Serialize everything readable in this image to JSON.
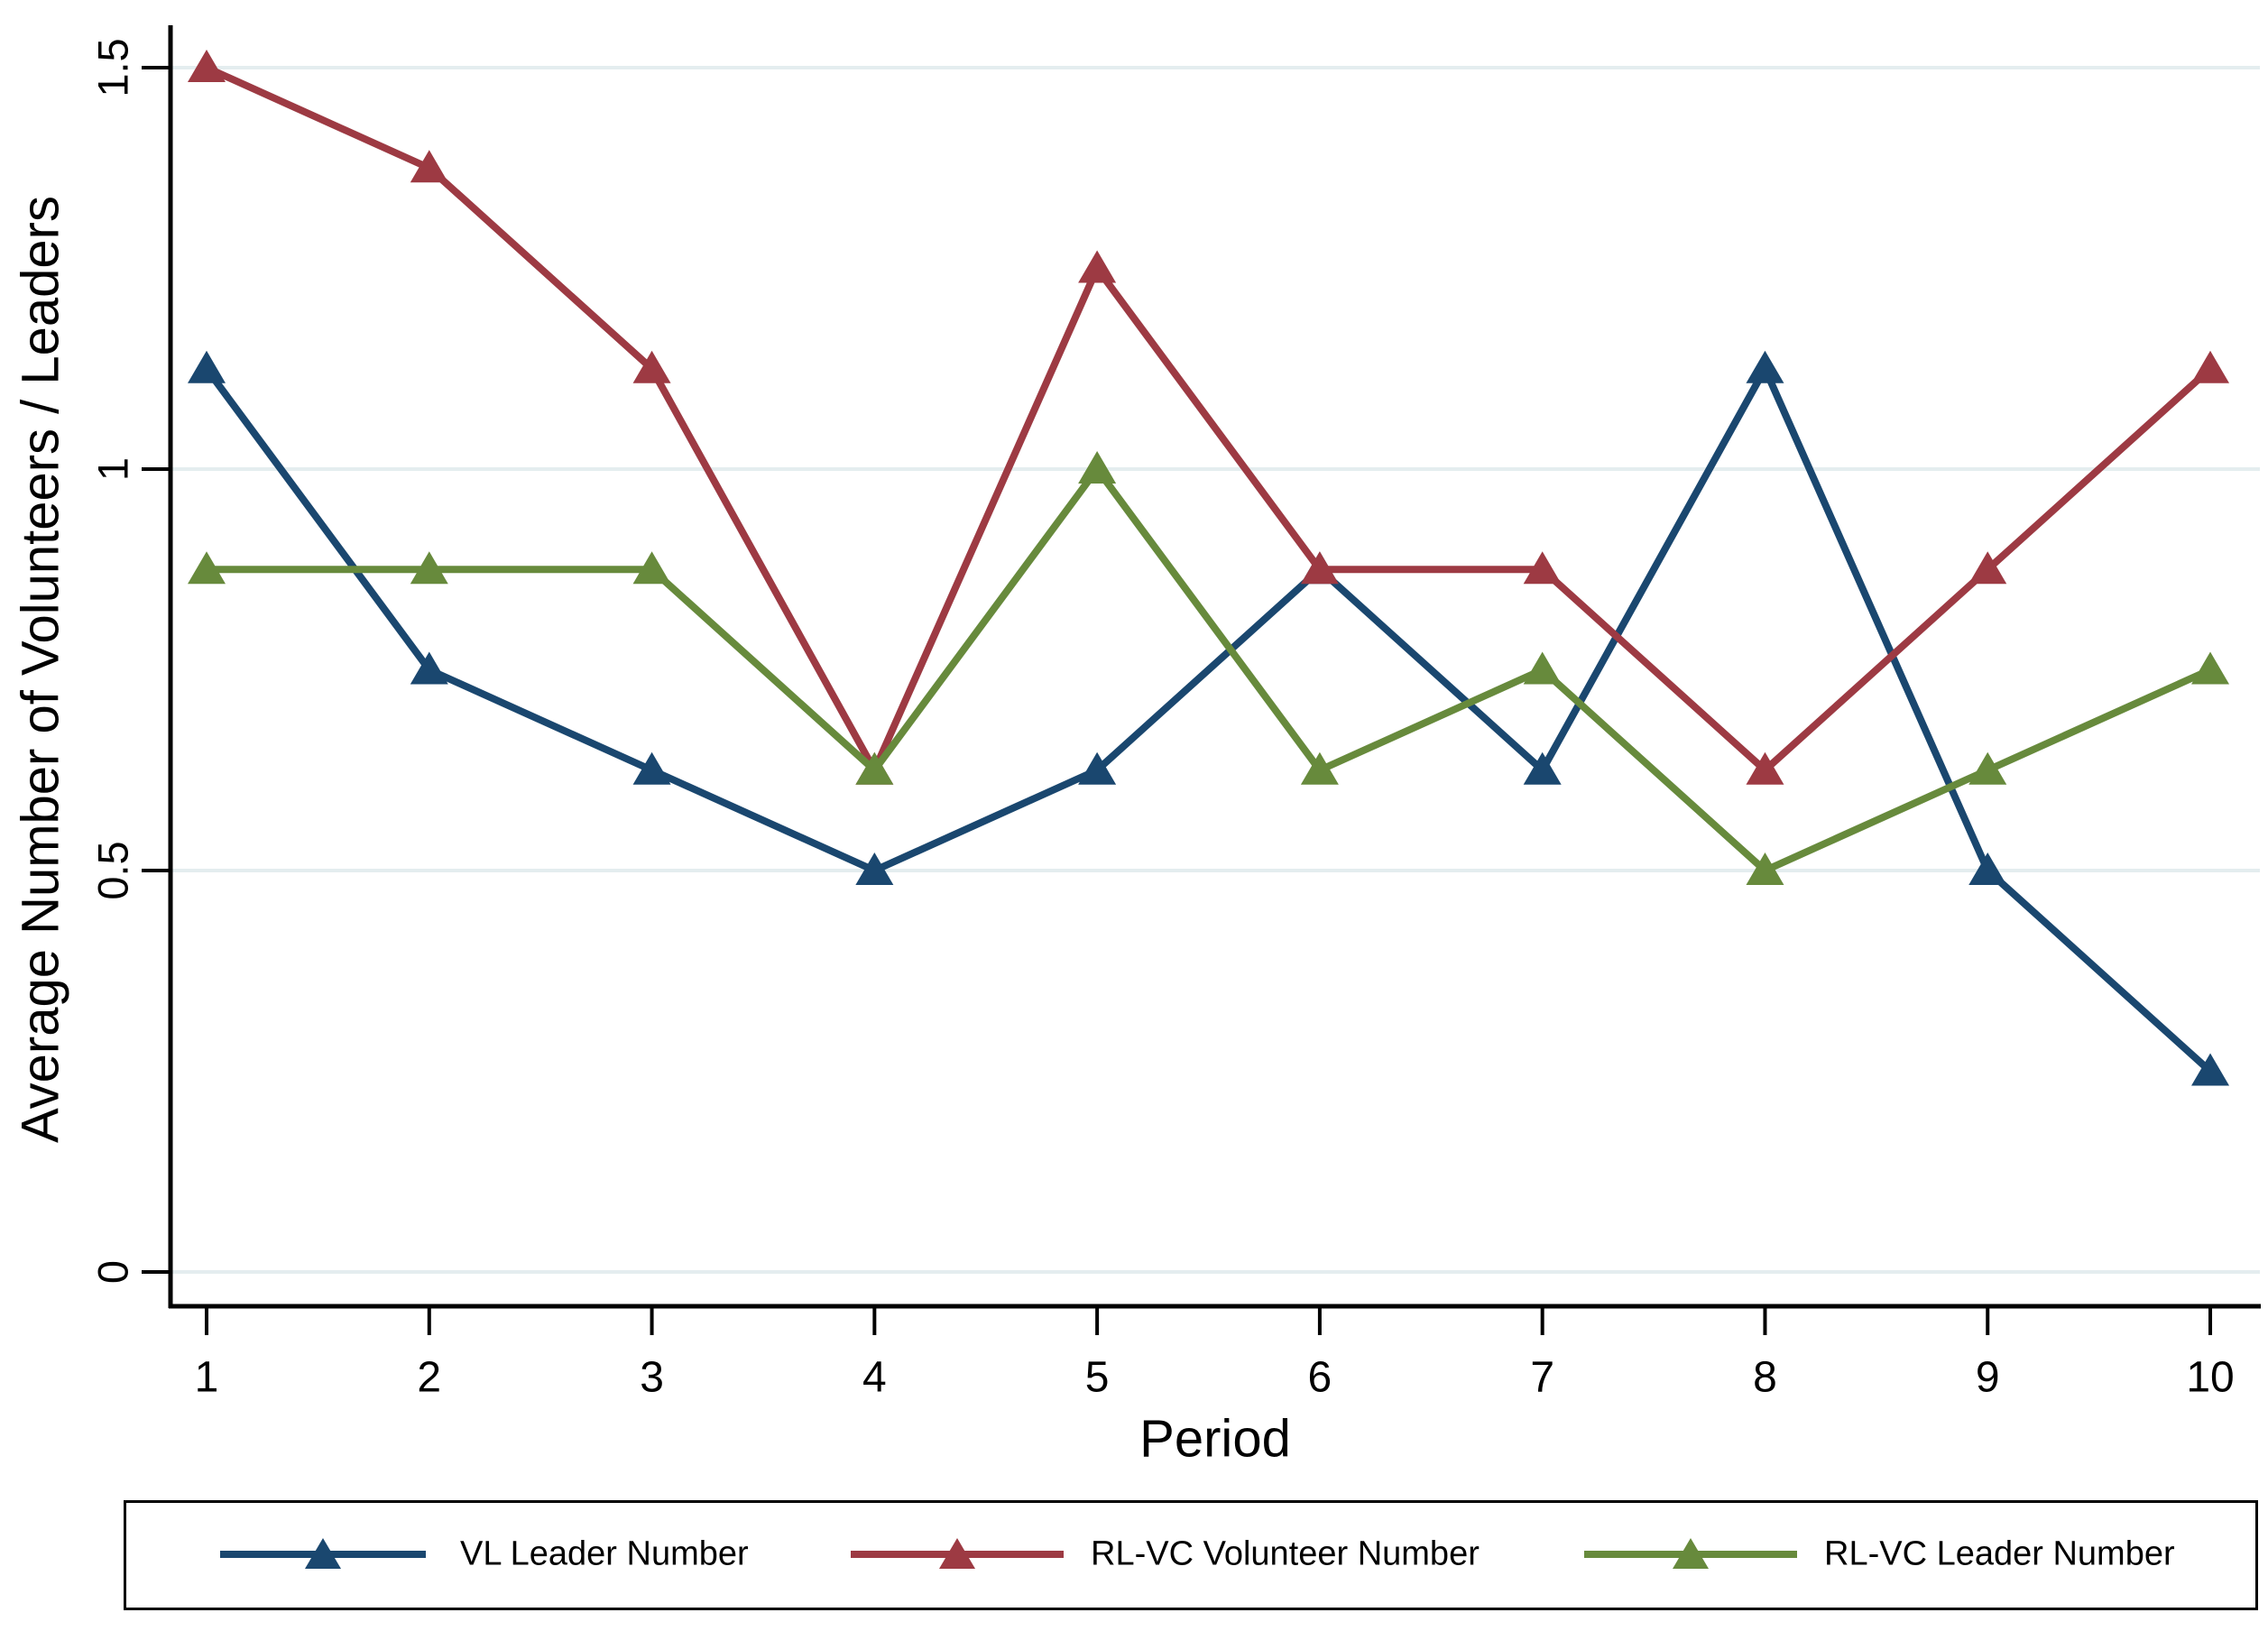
{
  "chart_data": {
    "type": "line",
    "title": "",
    "xlabel": "Period",
    "ylabel": "Average Number of Volunteers / Leaders",
    "x": [
      1,
      2,
      3,
      4,
      5,
      6,
      7,
      8,
      9,
      10
    ],
    "x_tick_labels": [
      "1",
      "2",
      "3",
      "4",
      "5",
      "6",
      "7",
      "8",
      "9",
      "10"
    ],
    "y_ticks": [
      0,
      0.5,
      1,
      1.5
    ],
    "y_tick_labels": [
      "0",
      "0.5",
      "1",
      "1.5"
    ],
    "ylim": [
      0,
      1.58
    ],
    "grid": true,
    "legend_position": "bottom",
    "series": [
      {
        "name": "VL Leader Number",
        "color": "#1a476f",
        "marker": "triangle",
        "values": [
          1.125,
          0.75,
          0.625,
          0.5,
          0.625,
          0.875,
          0.625,
          1.125,
          0.5,
          0.25
        ]
      },
      {
        "name": "RL-VC Volunteer Number",
        "color": "#9d3a43",
        "marker": "triangle",
        "values": [
          1.5,
          1.375,
          1.125,
          0.625,
          1.25,
          0.875,
          0.875,
          0.625,
          0.875,
          1.125
        ]
      },
      {
        "name": "RL-VC Leader Number",
        "color": "#678a3c",
        "marker": "triangle",
        "values": [
          0.875,
          0.875,
          0.875,
          0.625,
          1.0,
          0.625,
          0.75,
          0.5,
          0.625,
          0.75
        ]
      }
    ],
    "colors": {
      "grid": "#e4edef",
      "axis": "#000000",
      "background": "#ffffff"
    }
  }
}
